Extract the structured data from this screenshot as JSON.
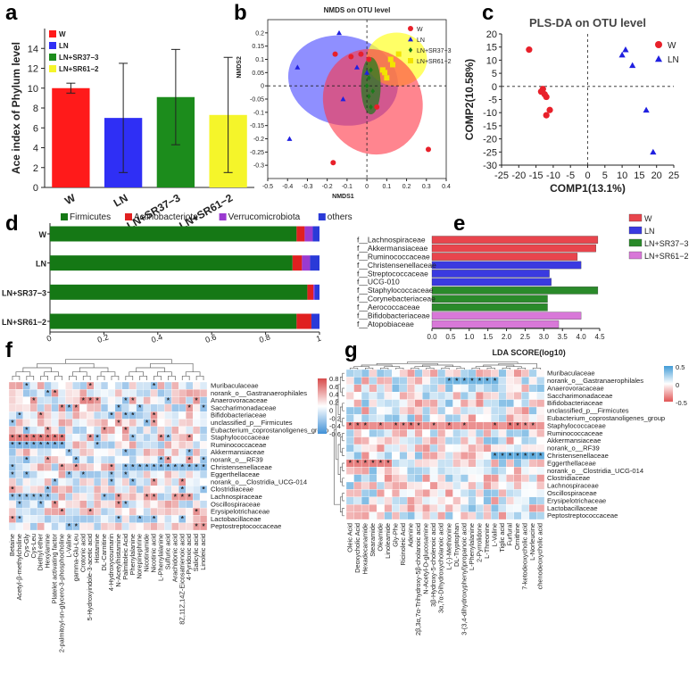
{
  "panel_labels": [
    "a",
    "b",
    "c",
    "d",
    "e",
    "f",
    "g"
  ],
  "chart_data": [
    {
      "id": "a",
      "type": "bar",
      "ylabel": "Ace index of Phylum level",
      "categories": [
        "W",
        "LN",
        "LN+SR37−3",
        "LN+SR61−2"
      ],
      "values": [
        10.0,
        7.0,
        9.1,
        7.3
      ],
      "errors": [
        0.5,
        5.5,
        4.8,
        5.8
      ],
      "colors": [
        "#ff1a1a",
        "#2f2ff5",
        "#1c8c1c",
        "#f5f52a"
      ],
      "legend": [
        "W",
        "LN",
        "LN+SR37−3",
        "LN+SR61−2"
      ],
      "ylim": [
        0,
        16
      ],
      "yticks": [
        0,
        2,
        4,
        6,
        8,
        10,
        12,
        14
      ]
    },
    {
      "id": "b",
      "type": "scatter",
      "title": "NMDS on OTU level",
      "xlabel": "NMDS1",
      "ylabel": "NMDS2",
      "xlim": [
        -0.5,
        0.4
      ],
      "ylim": [
        -0.35,
        0.25
      ],
      "xticks": [
        -0.5,
        -0.4,
        -0.3,
        -0.2,
        -0.1,
        0,
        0.1,
        0.2,
        0.3,
        0.4
      ],
      "yticks": [
        -0.3,
        -0.25,
        -0.2,
        -0.15,
        -0.1,
        -0.05,
        0,
        0.05,
        0.1,
        0.15,
        0.2
      ],
      "legend": [
        "W",
        "LN",
        "LN+SR37−3",
        "LN+SR61−2"
      ],
      "series": [
        {
          "name": "W",
          "color": "#e8202a",
          "points": [
            [
              -0.16,
              0.12
            ],
            [
              -0.08,
              0.11
            ],
            [
              -0.03,
              0.12
            ],
            [
              0.01,
              0.1
            ],
            [
              0.05,
              -0.08
            ],
            [
              0.31,
              -0.24
            ],
            [
              -0.17,
              -0.29
            ]
          ]
        },
        {
          "name": "LN",
          "color": "#2020e0",
          "points": [
            [
              -0.35,
              0.07
            ],
            [
              -0.14,
              0.2
            ],
            [
              -0.12,
              -0.05
            ],
            [
              -0.39,
              -0.2
            ],
            [
              0.0,
              0.05
            ],
            [
              -0.05,
              0.07
            ]
          ]
        },
        {
          "name": "LN+SR37−3",
          "color": "#1a7a1a",
          "points": [
            [
              0.0,
              0.0
            ],
            [
              0.01,
              0.03
            ],
            [
              0.01,
              -0.04
            ],
            [
              0.02,
              0.06
            ],
            [
              0.03,
              -0.02
            ],
            [
              0.02,
              -0.08
            ]
          ]
        },
        {
          "name": "LN+SR61−2",
          "color": "#f2e400",
          "points": [
            [
              0.09,
              0.05
            ],
            [
              0.12,
              0.1
            ],
            [
              0.13,
              0.08
            ],
            [
              0.16,
              0.12
            ],
            [
              0.1,
              0.03
            ],
            [
              0.08,
              0.06
            ]
          ]
        }
      ]
    },
    {
      "id": "c",
      "type": "scatter",
      "title": "PLS-DA on OTU level",
      "xlabel": "COMP1(13.1%)",
      "ylabel": "COMP2(10.58%)",
      "xlim": [
        -25,
        25
      ],
      "ylim": [
        -30,
        20
      ],
      "xticks": [
        -25,
        -20,
        -15,
        -10,
        -5,
        0,
        5,
        10,
        15,
        20,
        25
      ],
      "yticks": [
        -30,
        -25,
        -20,
        -15,
        -10,
        -5,
        0,
        5,
        10,
        15,
        20
      ],
      "legend": [
        "W",
        "LN"
      ],
      "series": [
        {
          "name": "W",
          "color": "#e8202a",
          "points": [
            [
              -17,
              14
            ],
            [
              -13,
              -1
            ],
            [
              -12.5,
              -3
            ],
            [
              -13.5,
              -2
            ],
            [
              -12,
              -4
            ],
            [
              -11,
              -9
            ],
            [
              -12,
              -11
            ]
          ]
        },
        {
          "name": "LN",
          "color": "#2020e0",
          "points": [
            [
              10,
              12
            ],
            [
              11,
              14
            ],
            [
              13,
              8
            ],
            [
              17,
              -9
            ],
            [
              19,
              -25
            ]
          ]
        }
      ]
    },
    {
      "id": "d",
      "type": "bar",
      "orientation": "horizontal-stacked",
      "legend": [
        "Firmicutes",
        "Actinobacteriota",
        "Verrucomicrobiota",
        "others"
      ],
      "colors": [
        "#157815",
        "#e02020",
        "#9a3ad0",
        "#2a3ad8"
      ],
      "categories": [
        "W",
        "LN",
        "LN+SR37−3",
        "LN+SR61−2"
      ],
      "series": [
        {
          "name": "Firmicutes",
          "values": [
            0.915,
            0.9,
            0.955,
            0.915
          ]
        },
        {
          "name": "Actinobacteriota",
          "values": [
            0.03,
            0.035,
            0.022,
            0.055
          ]
        },
        {
          "name": "Verrucomicrobiota",
          "values": [
            0.03,
            0.03,
            0.005,
            0.0
          ]
        },
        {
          "name": "others",
          "values": [
            0.025,
            0.035,
            0.018,
            0.03
          ]
        }
      ],
      "xlim": [
        0,
        1
      ],
      "xticks": [
        "0",
        "0.2",
        "0.4",
        "0.6",
        "0.8",
        "1"
      ]
    },
    {
      "id": "e",
      "type": "bar",
      "orientation": "horizontal",
      "xlabel": "LDA SCORE(log10)",
      "xlim": [
        0,
        4.5
      ],
      "xticks": [
        "0.0",
        "0.5",
        "1.0",
        "1.5",
        "2.0",
        "2.5",
        "3.0",
        "3.5",
        "4.0",
        "4.5"
      ],
      "legend": [
        "W",
        "LN",
        "LN+SR37−3",
        "LN+SR61−2"
      ],
      "legend_colors": [
        "#e8454d",
        "#3a3ae0",
        "#2a8a2a",
        "#d878d8"
      ],
      "categories": [
        "f__Lachnospiraceae",
        "f__Akkermansiaceae",
        "f__Ruminococcaceae",
        "f__Christensenellaceae",
        "f__Streptococcaceae",
        "f__UCG-010",
        "f__Staphylococcaceae",
        "f__Corynebacteriaceae",
        "f__Aerococcaceae",
        "f__Bifidobacteriaceae",
        "f__Atopobiaceae"
      ],
      "values": [
        4.45,
        4.4,
        3.9,
        4.0,
        3.15,
        3.2,
        4.45,
        3.1,
        3.1,
        4.0,
        3.4
      ],
      "groups": [
        "W",
        "W",
        "W",
        "LN",
        "LN",
        "LN",
        "LN+SR37−3",
        "LN+SR37−3",
        "LN+SR37−3",
        "LN+SR61−2",
        "LN+SR61−2"
      ]
    },
    {
      "id": "f",
      "type": "heatmap",
      "colorbar_ticks": [
        "0.8",
        "0.6",
        "0.4",
        "0.2",
        "0",
        "-0.2",
        "-0.4",
        "-0.6"
      ],
      "rows": [
        "Muribaculaceae",
        "norank_o__Gastranaerophilales",
        "Anaerovoracaceae",
        "Saccharimonadaceae",
        "Bifidobacteriaceae",
        "unclassified_p__Firmicutes",
        "Eubacterium_coprostanoligenes_group",
        "Staphylococcaceae",
        "Ruminococcaceae",
        "Akkermansiaceae",
        "norank_o__RF39",
        "Christensenellaceae",
        "Eggerthellaceae",
        "norank_o__Clostridia_UCG-014",
        "Clostridiaceae",
        "Lachnospiraceae",
        "Oscillospiraceae",
        "Erysipelotrichaceae",
        "Lactobacillaceae",
        "Peptostreptococcaceae"
      ],
      "columns": [
        "Betaine",
        "Acetyl-β-methylcholine",
        "Cys-Gly",
        "Cys-Leu",
        "Diethyl ether",
        "Hexylamine",
        "Platelet activating factor",
        "2-palmitoyl-sn-glycero-3-phosphocholine",
        "L-Valine",
        "gamma-Glu-Leu",
        "Crotonic acid",
        "5-Hydroxyindole-3-acetic acid",
        "Histamine",
        "DL-Carnitine",
        "4-Hydroxycoumarin",
        "N-Acetylhistamine",
        "Palmitoleic Acid",
        "Phenylalanine",
        "Norepinephrine",
        "Nicotinamide",
        "Nicotinic acid",
        "L-Phenylalanine",
        "Sulfuric acid",
        "Arachidonic acid",
        "8Z,11Z,14Z-Eicosatrienoic acid",
        "4-Pyridoxic acid",
        "Salicylic acid",
        "Linoleic acid"
      ]
    },
    {
      "id": "g",
      "type": "heatmap",
      "colorbar_ticks": [
        "0.5",
        "0",
        "-0.5"
      ],
      "rows": [
        "Muribaculaceae",
        "norank_o__Gastranaerophilales",
        "Anaerovoracaceae",
        "Saccharimonadaceae",
        "Bifidobacteriaceae",
        "unclassified_p__Firmicutes",
        "Eubacterium_coprostanoligenes_group",
        "Staphylococcaceae",
        "Ruminococcaceae",
        "Akkermansiaceae",
        "norank_o__RF39",
        "Christensenellaceae",
        "Eggerthellaceae",
        "norank_o__Clostridia_UCG-014",
        "Clostridiaceae",
        "Lachnospiraceae",
        "Oscillospiraceae",
        "Erysipelotrichaceae",
        "Lactobacillaceae",
        "Peptostreptococcaceae"
      ],
      "columns": [
        "Oleic Acid",
        "Deoxycholic Acid",
        "Hexadecanamide",
        "Stearamide",
        "Oleamide",
        "Linoleamide",
        "Gly-Phe",
        "Ricinoleic Acid",
        "Adenine",
        "2β,3α,7α-Trihydroxy-5β-cholanoic acid",
        "N-Acetyl-D-glucosamine",
        "3β-Hydroxy-5-cholenoic acid",
        "3α,7α-Dihydroxycholanoic acid",
        "L-(-)-Methionine",
        "DL-Tryptophan",
        "3-(3,4-dihydroxyphenyl)propanoic acid",
        "L-Phenylalanine",
        "2-Pyrrolidone",
        "L-Threonine",
        "L-Valine",
        "Tiglic acid",
        "Furfural",
        "Ornithine",
        "7-ketodeoxycholic acid",
        "L-Norleucine",
        "chenodeoxycholic acid"
      ]
    }
  ]
}
